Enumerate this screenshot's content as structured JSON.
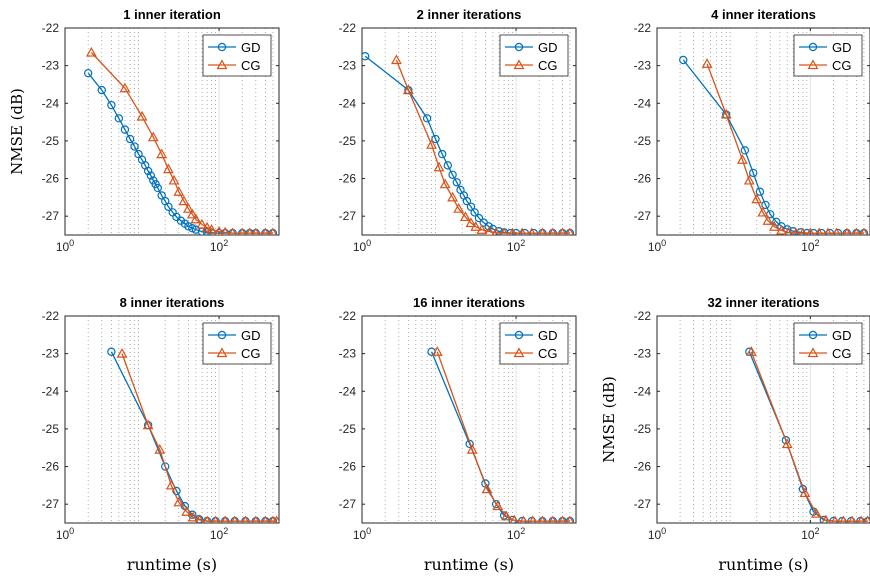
{
  "colors": {
    "gd": "#0072BD",
    "cg": "#D95319",
    "axis": "#262626",
    "grid": "#9a9a9a"
  },
  "shared_labels": {
    "ylabel": "NMSE (dB)",
    "xlabel": "runtime (s)"
  },
  "legend_labels": [
    "GD",
    "CG"
  ],
  "chart_data": [
    {
      "type": "line",
      "title": "1 inner iteration",
      "xscale": "log",
      "xlim": [
        1,
        600
      ],
      "ylim": [
        -27.5,
        -22
      ],
      "yticks": [
        -22,
        -23,
        -24,
        -25,
        -26,
        -27
      ],
      "xticks": [
        {
          "value": 1,
          "label": "10^0"
        },
        {
          "value": 100,
          "label": "10^2"
        }
      ],
      "ylabel": "NMSE (dB)",
      "xlabel": "",
      "legend": "top-right",
      "grid": "minor-x dotted",
      "series": [
        {
          "name": "GD",
          "marker": "circle",
          "x": [
            2,
            3,
            4,
            5,
            6,
            7,
            8,
            9,
            10,
            11,
            12,
            13,
            14,
            15,
            16,
            18,
            20,
            22,
            25,
            28,
            32,
            36,
            40,
            45,
            50,
            60,
            70,
            80,
            100,
            120,
            150,
            200,
            250,
            300,
            400,
            500
          ],
          "y": [
            -23.2,
            -23.65,
            -24.05,
            -24.4,
            -24.7,
            -24.95,
            -25.15,
            -25.35,
            -25.5,
            -25.65,
            -25.8,
            -25.92,
            -26.05,
            -26.15,
            -26.25,
            -26.45,
            -26.6,
            -26.75,
            -26.9,
            -27.02,
            -27.12,
            -27.2,
            -27.27,
            -27.32,
            -27.36,
            -27.41,
            -27.43,
            -27.44,
            -27.45,
            -27.45,
            -27.45,
            -27.45,
            -27.45,
            -27.45,
            -27.45,
            -27.45
          ]
        },
        {
          "name": "CG",
          "marker": "triangle",
          "x": [
            2.2,
            6,
            10,
            14,
            18,
            22,
            26,
            30,
            35,
            40,
            45,
            50,
            60,
            70,
            80,
            100,
            120,
            150,
            200,
            250,
            300,
            400,
            500
          ],
          "y": [
            -22.65,
            -23.6,
            -24.35,
            -24.9,
            -25.35,
            -25.75,
            -26.05,
            -26.35,
            -26.6,
            -26.8,
            -26.95,
            -27.08,
            -27.22,
            -27.3,
            -27.36,
            -27.41,
            -27.43,
            -27.45,
            -27.45,
            -27.45,
            -27.45,
            -27.45,
            -27.45
          ]
        }
      ]
    },
    {
      "type": "line",
      "title": "2 inner iterations",
      "xscale": "log",
      "xlim": [
        1,
        600
      ],
      "ylim": [
        -27.5,
        -22
      ],
      "yticks": [
        -22,
        -23,
        -24,
        -25,
        -26,
        -27
      ],
      "xticks": [
        {
          "value": 1,
          "label": "10^0"
        },
        {
          "value": 100,
          "label": "10^2"
        }
      ],
      "ylabel": "",
      "xlabel": "",
      "legend": "top-right",
      "grid": "minor-x dotted",
      "series": [
        {
          "name": "GD",
          "marker": "circle",
          "x": [
            1.1,
            4,
            7,
            9,
            11,
            13,
            15,
            17,
            19,
            21,
            23,
            26,
            29,
            33,
            38,
            44,
            50,
            60,
            70,
            85,
            100,
            130,
            170,
            220,
            300,
            400,
            500
          ],
          "y": [
            -22.75,
            -23.65,
            -24.4,
            -24.95,
            -25.35,
            -25.65,
            -25.9,
            -26.1,
            -26.3,
            -26.45,
            -26.6,
            -26.75,
            -26.9,
            -27.05,
            -27.17,
            -27.27,
            -27.34,
            -27.4,
            -27.43,
            -27.45,
            -27.45,
            -27.45,
            -27.45,
            -27.45,
            -27.45,
            -27.45,
            -27.45
          ]
        },
        {
          "name": "CG",
          "marker": "triangle",
          "x": [
            2.8,
            4,
            8,
            10,
            12,
            15,
            18,
            22,
            26,
            30,
            36,
            45,
            55,
            70,
            90,
            120,
            160,
            220,
            300,
            400,
            500
          ],
          "y": [
            -22.85,
            -23.65,
            -25.1,
            -25.7,
            -26.15,
            -26.5,
            -26.8,
            -27.02,
            -27.18,
            -27.28,
            -27.36,
            -27.41,
            -27.44,
            -27.45,
            -27.45,
            -27.45,
            -27.45,
            -27.45,
            -27.45,
            -27.45,
            -27.45
          ]
        }
      ]
    },
    {
      "type": "line",
      "title": "4 inner iterations",
      "xscale": "log",
      "xlim": [
        1,
        600
      ],
      "ylim": [
        -27.5,
        -22
      ],
      "yticks": [
        -22,
        -23,
        -24,
        -25,
        -26,
        -27
      ],
      "xticks": [
        {
          "value": 1,
          "label": "10^0"
        },
        {
          "value": 100,
          "label": "10^2"
        }
      ],
      "ylabel": "",
      "xlabel": "",
      "legend": "top-right",
      "grid": "minor-x dotted",
      "series": [
        {
          "name": "GD",
          "marker": "circle",
          "x": [
            2.2,
            8,
            14,
            18,
            22,
            26,
            30,
            36,
            42,
            50,
            60,
            75,
            90,
            110,
            140,
            180,
            230,
            300,
            400,
            500
          ],
          "y": [
            -22.85,
            -24.3,
            -25.25,
            -25.85,
            -26.35,
            -26.7,
            -26.95,
            -27.15,
            -27.27,
            -27.35,
            -27.4,
            -27.43,
            -27.45,
            -27.45,
            -27.45,
            -27.45,
            -27.45,
            -27.45,
            -27.45,
            -27.45
          ]
        },
        {
          "name": "CG",
          "marker": "triangle",
          "x": [
            4.5,
            8,
            13,
            16,
            20,
            24,
            28,
            34,
            42,
            52,
            65,
            80,
            100,
            130,
            170,
            220,
            300,
            400,
            500
          ],
          "y": [
            -22.95,
            -24.3,
            -25.5,
            -26.05,
            -26.55,
            -26.9,
            -27.12,
            -27.28,
            -27.38,
            -27.43,
            -27.45,
            -27.45,
            -27.45,
            -27.45,
            -27.45,
            -27.45,
            -27.45,
            -27.45,
            -27.45
          ]
        }
      ]
    },
    {
      "type": "line",
      "title": "8 inner iterations",
      "xscale": "log",
      "xlim": [
        1,
        600
      ],
      "ylim": [
        -27.5,
        -22
      ],
      "yticks": [
        -22,
        -23,
        -24,
        -25,
        -26,
        -27
      ],
      "xticks": [
        {
          "value": 1,
          "label": "10^0"
        },
        {
          "value": 100,
          "label": "10^2"
        }
      ],
      "ylabel": "",
      "xlabel": "runtime (s)",
      "legend": "top-right",
      "grid": "minor-x dotted",
      "series": [
        {
          "name": "GD",
          "marker": "circle",
          "x": [
            4,
            12,
            20,
            28,
            36,
            45,
            55,
            70,
            90,
            120,
            160,
            220,
            300,
            400,
            500
          ],
          "y": [
            -22.95,
            -24.9,
            -26.0,
            -26.65,
            -27.05,
            -27.28,
            -27.4,
            -27.45,
            -27.45,
            -27.45,
            -27.45,
            -27.45,
            -27.45,
            -27.45,
            -27.45
          ]
        },
        {
          "name": "CG",
          "marker": "triangle",
          "x": [
            5.5,
            12,
            17,
            24,
            30,
            38,
            46,
            56,
            70,
            90,
            120,
            160,
            220,
            300,
            400,
            500,
            560
          ],
          "y": [
            -23.0,
            -24.9,
            -25.55,
            -26.5,
            -26.95,
            -27.2,
            -27.35,
            -27.42,
            -27.45,
            -27.45,
            -27.45,
            -27.45,
            -27.45,
            -27.45,
            -27.45,
            -27.45,
            -27.45
          ]
        }
      ]
    },
    {
      "type": "line",
      "title": "16 inner iterations",
      "xscale": "log",
      "xlim": [
        1,
        600
      ],
      "ylim": [
        -27.5,
        -22
      ],
      "yticks": [
        -22,
        -23,
        -24,
        -25,
        -26,
        -27
      ],
      "xticks": [
        {
          "value": 1,
          "label": "10^0"
        },
        {
          "value": 100,
          "label": "10^2"
        }
      ],
      "ylabel": "",
      "xlabel": "runtime (s)",
      "legend": "top-right",
      "grid": "minor-x dotted",
      "series": [
        {
          "name": "GD",
          "marker": "circle",
          "x": [
            8,
            25,
            40,
            55,
            70,
            90,
            120,
            160,
            220,
            300,
            400,
            500
          ],
          "y": [
            -22.95,
            -25.4,
            -26.45,
            -27.0,
            -27.3,
            -27.42,
            -27.45,
            -27.45,
            -27.45,
            -27.45,
            -27.45,
            -27.45
          ]
        },
        {
          "name": "CG",
          "marker": "triangle",
          "x": [
            9.5,
            27,
            42,
            58,
            75,
            95,
            125,
            165,
            220,
            300,
            400,
            500
          ],
          "y": [
            -22.95,
            -25.55,
            -26.6,
            -27.05,
            -27.32,
            -27.43,
            -27.45,
            -27.45,
            -27.45,
            -27.45,
            -27.45,
            -27.45
          ]
        }
      ]
    },
    {
      "type": "line",
      "title": "32 inner iterations",
      "xscale": "log",
      "xlim": [
        1,
        600
      ],
      "ylim": [
        -27.5,
        -22
      ],
      "yticks": [
        -22,
        -23,
        -24,
        -25,
        -26,
        -27
      ],
      "xticks": [
        {
          "value": 1,
          "label": "10^0"
        },
        {
          "value": 100,
          "label": "10^2"
        }
      ],
      "ylabel": "NMSE (dB)",
      "xlabel": "runtime (s)",
      "legend": "top-right",
      "grid": "minor-x dotted",
      "series": [
        {
          "name": "GD",
          "marker": "circle",
          "x": [
            16,
            48,
            80,
            110,
            150,
            200,
            260,
            340,
            450,
            560
          ],
          "y": [
            -22.95,
            -25.3,
            -26.6,
            -27.2,
            -27.42,
            -27.45,
            -27.45,
            -27.45,
            -27.45,
            -27.45
          ]
        },
        {
          "name": "CG",
          "marker": "triangle",
          "x": [
            17,
            50,
            85,
            120,
            160,
            210,
            270,
            350,
            460,
            560
          ],
          "y": [
            -22.95,
            -25.4,
            -26.7,
            -27.25,
            -27.43,
            -27.45,
            -27.45,
            -27.45,
            -27.45,
            -27.45
          ]
        }
      ]
    }
  ]
}
